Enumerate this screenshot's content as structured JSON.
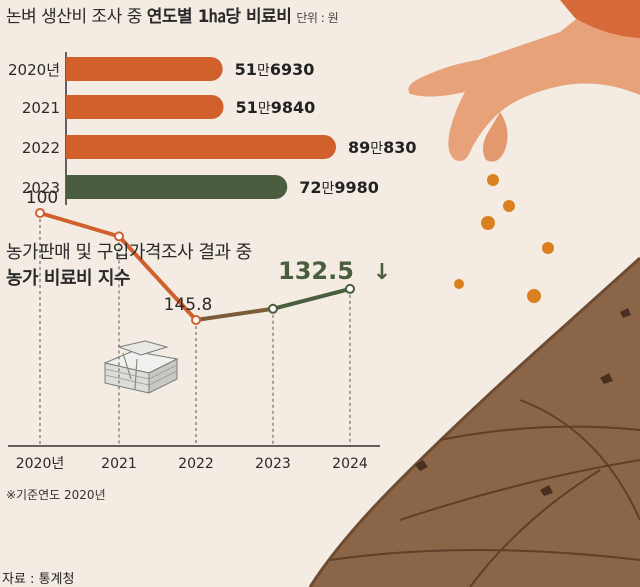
{
  "header": {
    "title_prefix": "논벼 생산비 조사 중 ",
    "title_bold": "연도별 1㏊당 비료비",
    "unit": "단위 : 원"
  },
  "section2": {
    "subtitle": "농가판매 및 구입가격조사 결과 중",
    "title": "농가 비료비 지수"
  },
  "footnote": "※기준연도 2020년",
  "source": "자료 : 통계청",
  "colors": {
    "orange": "#d0612d",
    "green": "#4a5e3f",
    "background": "#f4ece3",
    "soil": "#8b6547"
  },
  "chart_data": [
    {
      "type": "bar",
      "orientation": "horizontal",
      "categories": [
        "2020년",
        "2021",
        "2022",
        "2023"
      ],
      "values": [
        516930,
        519840,
        890830,
        729980
      ],
      "value_labels": [
        [
          "51",
          "만",
          "6930"
        ],
        [
          "51",
          "만",
          "9840"
        ],
        [
          "89",
          "만",
          "830"
        ],
        [
          "72",
          "만",
          "9980"
        ]
      ],
      "bar_colors": [
        "#d0612d",
        "#d0612d",
        "#d0612d",
        "#4a5e3f"
      ]
    },
    {
      "type": "line",
      "x": [
        "2020년",
        "2021",
        "2022",
        "2023",
        "2024"
      ],
      "y": [
        100,
        110,
        145.8,
        141,
        132.5
      ],
      "value_labels": [
        "100",
        "",
        "145.8",
        "",
        "132.5"
      ],
      "highlight": {
        "label": "132.5",
        "arrow": "↓"
      }
    }
  ]
}
